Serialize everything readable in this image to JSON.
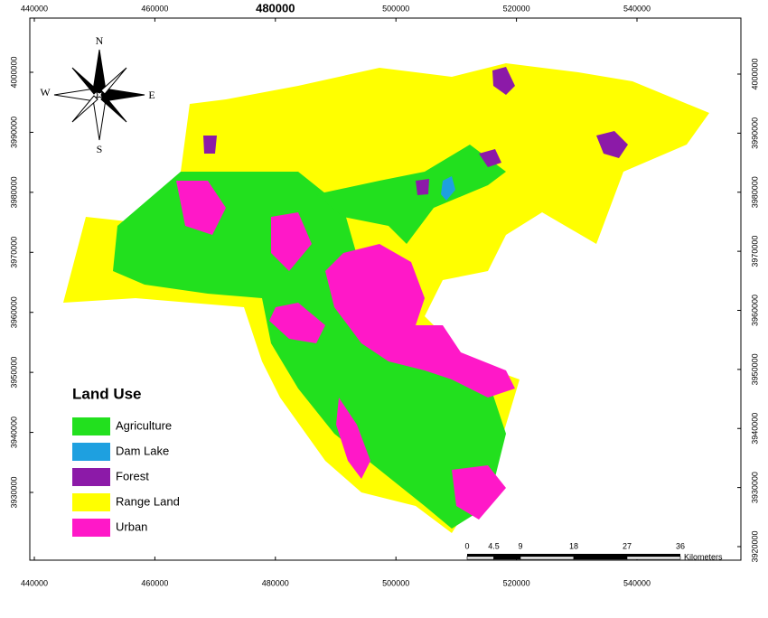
{
  "compass": {
    "north": "N",
    "south": "S",
    "east": "E",
    "west": "W"
  },
  "x_coordinates_top": [
    440000,
    460000,
    480000,
    500000,
    520000,
    540000
  ],
  "x_coordinates_bottom": [
    440000,
    460000,
    480000,
    500000,
    520000,
    540000
  ],
  "y_coordinates_left": [
    4000000,
    3990000,
    3980000,
    3970000,
    3960000,
    3950000,
    3940000,
    3930000
  ],
  "y_coordinates_right": [
    4000000,
    3990000,
    3980000,
    3970000,
    3960000,
    3950000,
    3940000,
    3930000,
    3920000
  ],
  "legend": {
    "title": "Land Use",
    "items": [
      {
        "label": "Agriculture",
        "color": "#22e01e"
      },
      {
        "label": "Dam Lake",
        "color": "#1ea0e0"
      },
      {
        "label": "Forest",
        "color": "#8c1aa8"
      },
      {
        "label": "Range Land",
        "color": "#ffff00"
      },
      {
        "label": "Urban",
        "color": "#ff18c8"
      }
    ]
  },
  "scale_bar": {
    "ticks": [
      0,
      4.5,
      9,
      18,
      27,
      36
    ],
    "unit": "Kilometers"
  }
}
